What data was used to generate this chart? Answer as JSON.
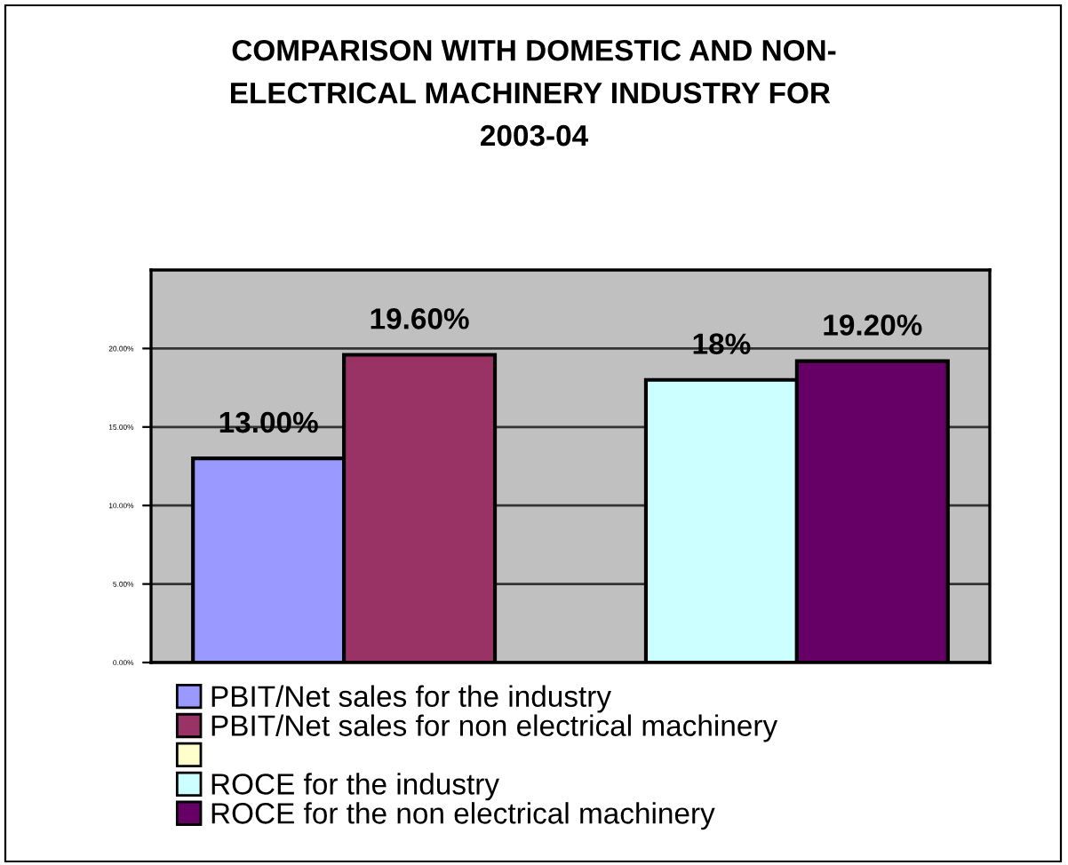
{
  "chart_data": {
    "type": "bar",
    "title": "COMPARISON WITH DOMESTIC AND NON-\nELECTRICAL MACHINERY INDUSTRY FOR \n2003-04",
    "categories": [
      null
    ],
    "series": [
      {
        "name": "PBIT/Net sales for the industry",
        "color": "#9999ff",
        "values": [
          13.0
        ],
        "value_labels": [
          "13.00%"
        ]
      },
      {
        "name": "PBIT/Net sales for non electrical machinery",
        "color": "#993366",
        "values": [
          19.6
        ],
        "value_labels": [
          "19.60%"
        ]
      },
      {
        "color": "#ffffcc",
        "values": [
          null
        ],
        "value_labels": [
          null
        ]
      },
      {
        "name": "ROCE for the industry",
        "color": "#ccffff",
        "values": [
          18
        ],
        "value_labels": [
          "18%"
        ]
      },
      {
        "name": "ROCE for the non electrical machinery",
        "color": "#660066",
        "values": [
          19.2
        ],
        "value_labels": [
          "19.20%"
        ]
      }
    ],
    "ylim": [
      0,
      25
    ],
    "yticks": [
      {
        "value": 0,
        "label": "0.00%"
      },
      {
        "value": 5,
        "label": "5.00%"
      },
      {
        "value": 10,
        "label": "10.00%"
      },
      {
        "value": 15,
        "label": "15.00%"
      },
      {
        "value": 20,
        "label": "20.00%"
      }
    ],
    "grid": "y",
    "legend": "bottom"
  }
}
